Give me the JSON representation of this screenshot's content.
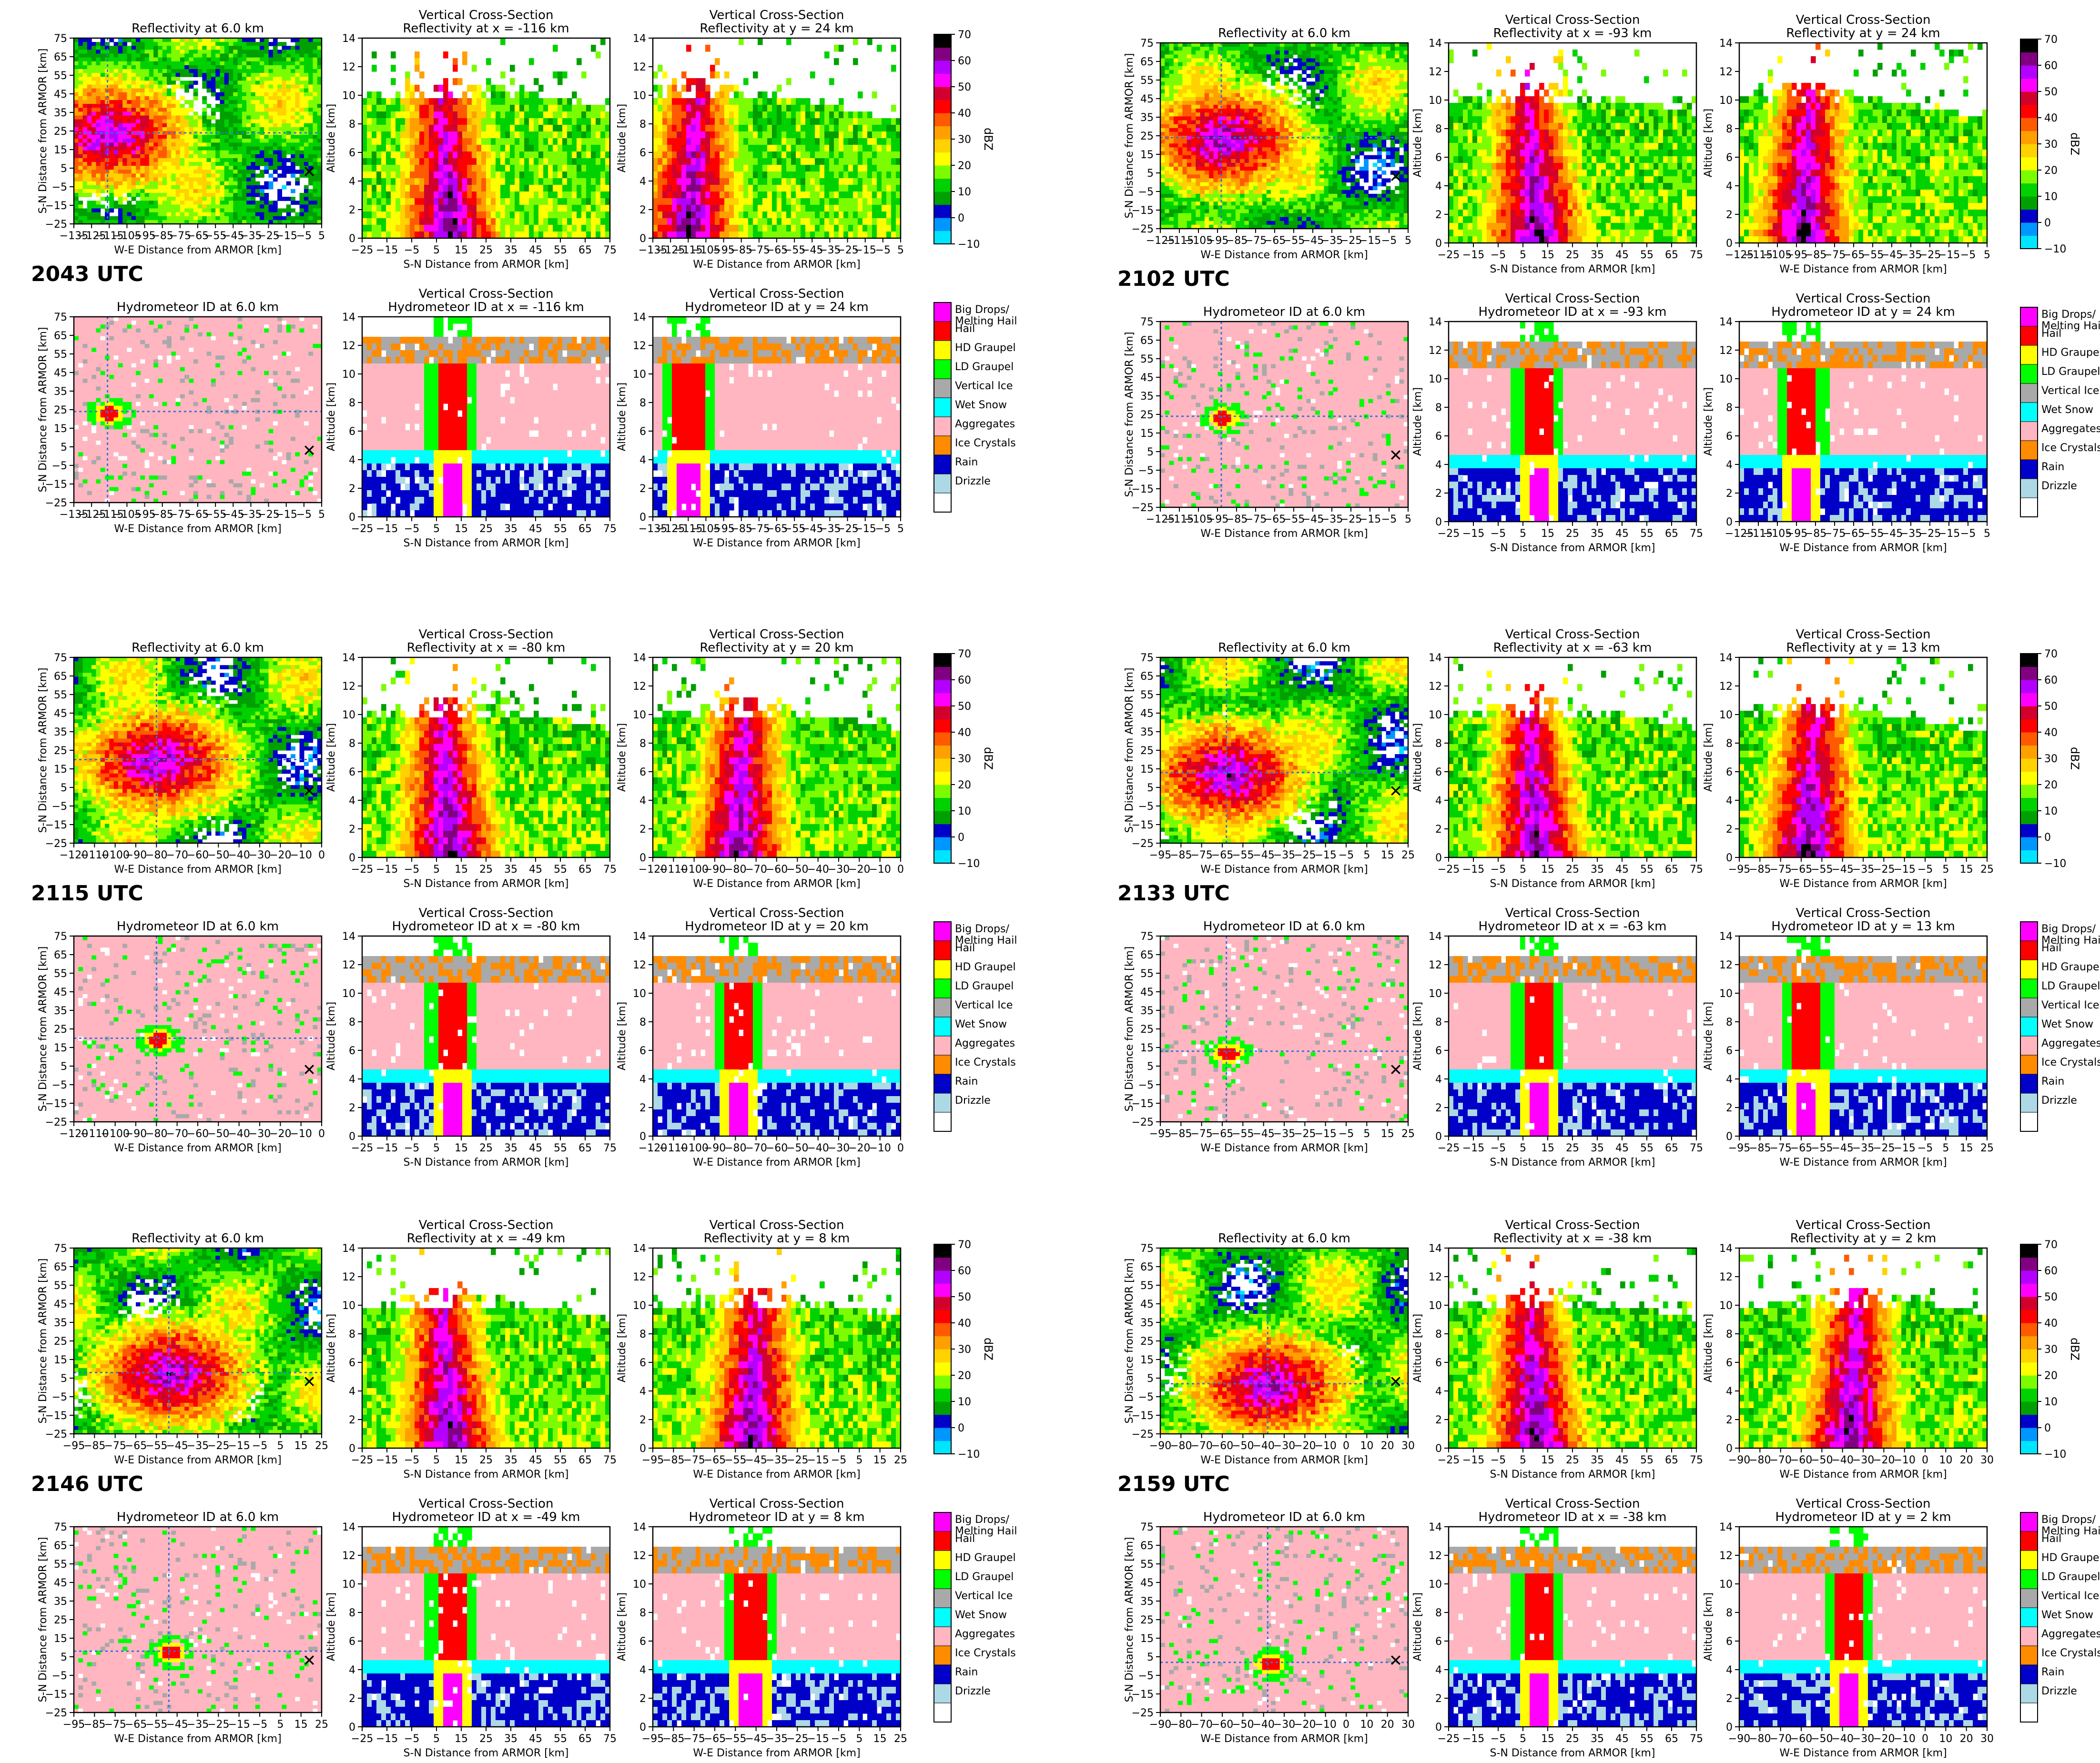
{
  "colors": {
    "refl_scale": [
      "#00e5ff",
      "#0096ff",
      "#0000c8",
      "#00a000",
      "#00d200",
      "#7cfc00",
      "#ffff00",
      "#ffd200",
      "#ffa000",
      "#ff5a00",
      "#ff0000",
      "#d2002d",
      "#ff00ff",
      "#b400ff",
      "#800080",
      "#000000"
    ],
    "hid_classes": [
      "#ff00ff",
      "#ff0000",
      "#ffff00",
      "#00ff00",
      "#a9a9a9",
      "#00ffff",
      "#ffb6c1",
      "#ff8c00",
      "#0000c8",
      "#add8e6",
      "#ffffff"
    ]
  },
  "labels": {
    "refl_title_plan": "Reflectivity at 6.0 km",
    "hid_title_plan": "Hydrometeor ID at 6.0 km",
    "vcs_title": "Vertical Cross-Section",
    "refl_x_prefix": "Reflectivity at x = ",
    "refl_y_prefix": "Reflectivity at y = ",
    "hid_x_prefix": "Hydrometeor ID at x = ",
    "hid_y_prefix": "Hydrometeor ID at y = ",
    "km_suffix": " km",
    "we_label": "W-E Distance from ARMOR [km]",
    "sn_label": "S-N Distance from ARMOR [km]",
    "alt_label": "Altitude [km]",
    "cbar_label": "dBZ"
  },
  "legend_hid": [
    "Big Drops/\nMelting Hail",
    "Hail",
    "HD Graupel",
    "LD Graupel",
    "Vertical Ice",
    "Wet Snow",
    "Aggregates",
    "Ice Crystals",
    "Rain",
    "Drizzle",
    ""
  ],
  "cbar_ticks": [
    70,
    60,
    50,
    40,
    30,
    20,
    10,
    0,
    -10
  ],
  "alt_ticks": [
    0,
    2,
    4,
    6,
    8,
    10,
    12,
    14
  ],
  "sn_ticks": [
    75,
    65,
    55,
    45,
    35,
    25,
    15,
    5,
    -5,
    -15,
    -25
  ],
  "sn_cross_ticks": [
    "−25",
    "−15",
    "−5",
    "5",
    "15",
    "25",
    "35",
    "45",
    "55",
    "65",
    "75"
  ],
  "chart_data": [
    {
      "type": "heatmap",
      "time": "2043 UTC",
      "x_km": -116,
      "y_km": 24,
      "xlim": [
        -135,
        5
      ],
      "we_ticks": [
        "−135",
        "−125",
        "−115",
        "−105",
        "−95",
        "−85",
        "−75",
        "−65",
        "−55",
        "−45",
        "−35",
        "−25",
        "−15",
        "−5",
        "5"
      ]
    },
    {
      "type": "heatmap",
      "time": "2102 UTC",
      "x_km": -93,
      "y_km": 24,
      "xlim": [
        -125,
        5
      ],
      "we_ticks": [
        "−125",
        "−115",
        "−105",
        "−95",
        "−85",
        "−75",
        "−65",
        "−55",
        "−45",
        "−35",
        "−25",
        "−15",
        "−5",
        "5"
      ]
    },
    {
      "type": "heatmap",
      "time": "2115 UTC",
      "x_km": -80,
      "y_km": 20,
      "xlim": [
        -120,
        0
      ],
      "we_ticks": [
        "−120",
        "−110",
        "−100",
        "−90",
        "−80",
        "−70",
        "−60",
        "−50",
        "−40",
        "−30",
        "−20",
        "−10",
        "0"
      ]
    },
    {
      "type": "heatmap",
      "time": "2133 UTC",
      "x_km": -63,
      "y_km": 13,
      "xlim": [
        -95,
        25
      ],
      "we_ticks": [
        "−95",
        "−85",
        "−75",
        "−65",
        "−55",
        "−45",
        "−35",
        "−25",
        "−15",
        "−5",
        "5",
        "15",
        "25"
      ]
    },
    {
      "type": "heatmap",
      "time": "2146 UTC",
      "x_km": -49,
      "y_km": 8,
      "xlim": [
        -95,
        25
      ],
      "we_ticks": [
        "−95",
        "−85",
        "−75",
        "−65",
        "−55",
        "−45",
        "−35",
        "−25",
        "−15",
        "−5",
        "5",
        "15",
        "25"
      ]
    },
    {
      "type": "heatmap",
      "time": "2159 UTC",
      "x_km": -38,
      "y_km": 2,
      "xlim": [
        -90,
        30
      ],
      "we_ticks": [
        "−90",
        "−80",
        "−70",
        "−60",
        "−50",
        "−40",
        "−30",
        "−20",
        "−10",
        "0",
        "10",
        "20",
        "30"
      ]
    }
  ]
}
